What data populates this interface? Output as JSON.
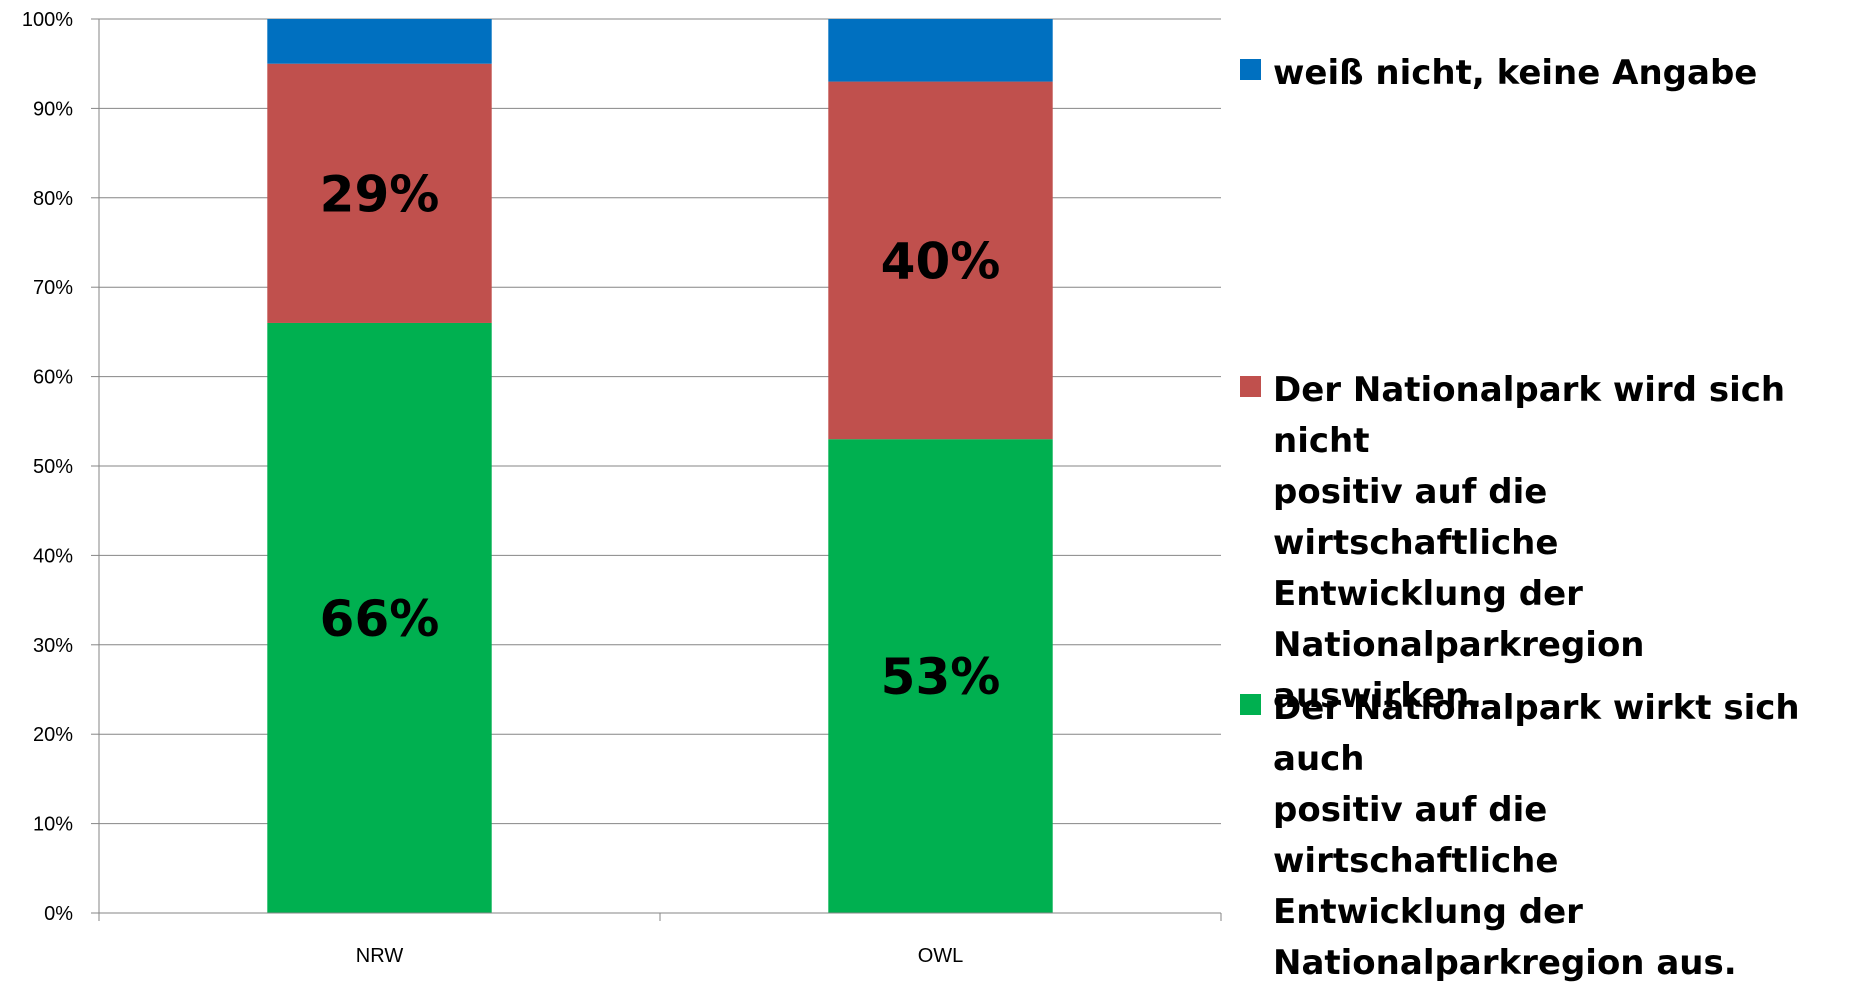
{
  "chart_data": {
    "type": "bar",
    "stacked": true,
    "categories": [
      "NRW",
      "OWL"
    ],
    "series": [
      {
        "name": "Der Nationalpark wirkt sich auch positiv auf die wirtschaftliche Entwicklung der Nationalparkregion aus.",
        "color": "#00B050",
        "values": [
          66,
          53
        ],
        "labels": [
          "66%",
          "53%"
        ]
      },
      {
        "name": "Der Nationalpark wird sich nicht positiv auf die wirtschaftliche Entwicklung der Nationalparkregion auswirken.",
        "color": "#C0504D",
        "values": [
          29,
          40
        ],
        "labels": [
          "29%",
          "40%"
        ]
      },
      {
        "name": "weiß nicht, keine Angabe",
        "color": "#0070C0",
        "values": [
          5,
          7
        ],
        "labels": [
          "",
          ""
        ]
      }
    ],
    "yticks": [
      "0%",
      "10%",
      "20%",
      "30%",
      "40%",
      "50%",
      "60%",
      "70%",
      "80%",
      "90%",
      "100%"
    ],
    "ylim": [
      0,
      100
    ],
    "grid": true,
    "legend_position": "right"
  },
  "legend": {
    "items": [
      {
        "text": "weiß nicht, keine Angabe",
        "color": "#0070C0"
      },
      {
        "text": "Der Nationalpark wird sich nicht\npositiv auf die wirtschaftliche\nEntwicklung der\nNationalparkregion auswirken.",
        "color": "#C0504D"
      },
      {
        "text": "Der Nationalpark wirkt sich auch\npositiv auf die wirtschaftliche\nEntwicklung der\nNationalparkregion aus.",
        "color": "#00B050"
      }
    ]
  }
}
